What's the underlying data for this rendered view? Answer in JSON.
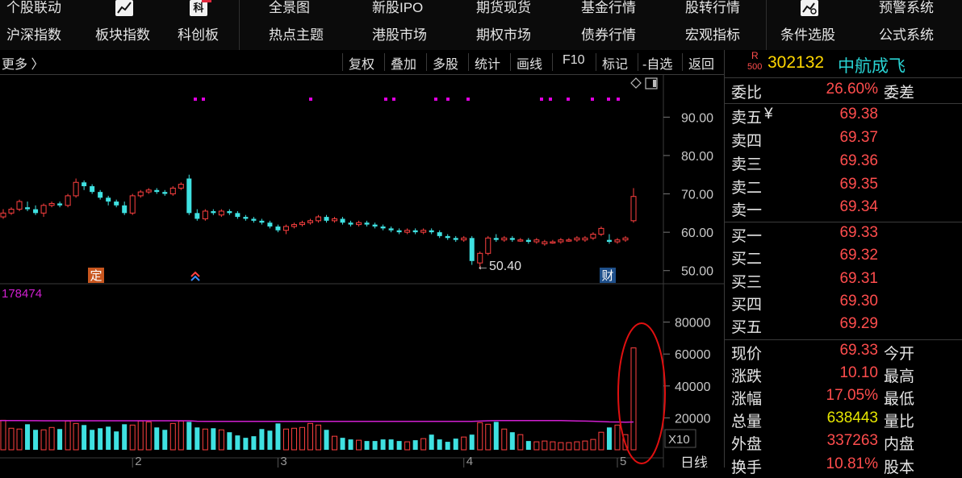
{
  "nav": {
    "row1": [
      "个股联动",
      "全景图",
      "新股IPO",
      "期货现货",
      "基金行情",
      "股转行情",
      "预警系统"
    ],
    "row2": [
      "沪深指数",
      "板块指数",
      "科创板",
      "热点主题",
      "港股市场",
      "期权市场",
      "债券行情",
      "宏观指标",
      "条件选股",
      "公式系统"
    ],
    "icon_ke": "科"
  },
  "toolbar": {
    "more": "更多 〉",
    "buttons": [
      "复权",
      "叠加",
      "多股",
      "统计",
      "画线",
      "F10",
      "标记",
      "-自选",
      "返回"
    ]
  },
  "stock": {
    "badge_r": "R",
    "badge_500": "500",
    "code": "302132",
    "name": "中航成飞"
  },
  "quote": {
    "weibi_label": "委比",
    "weibi_value": "26.60%",
    "weicha_label": "委差",
    "asks": [
      {
        "label": "卖五",
        "mark": "¥",
        "price": "69.38"
      },
      {
        "label": "卖四",
        "mark": "",
        "price": "69.37"
      },
      {
        "label": "卖三",
        "mark": "",
        "price": "69.36"
      },
      {
        "label": "卖二",
        "mark": "",
        "price": "69.35"
      },
      {
        "label": "卖一",
        "mark": "",
        "price": "69.34"
      }
    ],
    "bids": [
      {
        "label": "买一",
        "price": "69.33"
      },
      {
        "label": "买二",
        "price": "69.32"
      },
      {
        "label": "买三",
        "price": "69.31"
      },
      {
        "label": "买四",
        "price": "69.30"
      },
      {
        "label": "买五",
        "price": "69.29"
      }
    ],
    "stats": [
      {
        "label": "现价",
        "value": "69.33",
        "extra": "今开",
        "color": "#ff4d4d"
      },
      {
        "label": "涨跌",
        "value": "10.10",
        "extra": "最高",
        "color": "#ff4d4d"
      },
      {
        "label": "涨幅",
        "value": "17.05%",
        "extra": "最低",
        "color": "#ff4d4d"
      },
      {
        "label": "总量",
        "value": "638443",
        "extra": "量比",
        "color": "#e6e600"
      },
      {
        "label": "外盘",
        "value": "337263",
        "extra": "内盘",
        "color": "#ff4d4d"
      },
      {
        "label": "换手",
        "value": "10.81%",
        "extra": "股本",
        "color": "#ff4d4d"
      }
    ]
  },
  "chart_data": [
    {
      "type": "candlestick",
      "y_ticks": [
        "90.00",
        "80.00",
        "70.00",
        "60.00",
        "50.00"
      ],
      "ylim": [
        47,
        97
      ],
      "low_annotation": "←50.40",
      "marker_labels": [
        "定",
        "财"
      ],
      "candles": [
        [
          64.0,
          66.0,
          63.5,
          65.0
        ],
        [
          65.0,
          66.5,
          64.5,
          66.0
        ],
        [
          66.0,
          68.5,
          65.5,
          68.0
        ],
        [
          66.5,
          68.0,
          65.5,
          66.0
        ],
        [
          66.0,
          67.0,
          64.5,
          65.0
        ],
        [
          65.0,
          67.5,
          64.0,
          67.0
        ],
        [
          67.0,
          68.0,
          66.5,
          67.5
        ],
        [
          67.5,
          68.0,
          66.5,
          67.0
        ],
        [
          67.0,
          70.0,
          66.5,
          69.5
        ],
        [
          69.5,
          74.0,
          69.0,
          73.0
        ],
        [
          73.0,
          73.5,
          71.0,
          72.0
        ],
        [
          72.0,
          72.5,
          70.0,
          70.5
        ],
        [
          70.5,
          71.0,
          68.5,
          69.0
        ],
        [
          69.0,
          69.5,
          67.0,
          68.0
        ],
        [
          68.0,
          68.5,
          66.5,
          67.0
        ],
        [
          67.0,
          68.0,
          64.5,
          65.0
        ],
        [
          65.0,
          70.0,
          64.5,
          69.5
        ],
        [
          69.5,
          71.0,
          69.0,
          70.5
        ],
        [
          70.5,
          71.5,
          70.0,
          71.0
        ],
        [
          71.0,
          71.5,
          70.0,
          70.5
        ],
        [
          70.5,
          71.0,
          69.5,
          70.0
        ],
        [
          70.0,
          72.0,
          69.5,
          71.5
        ],
        [
          71.5,
          73.0,
          71.0,
          72.5
        ],
        [
          74.0,
          75.0,
          64.5,
          65.0
        ],
        [
          65.0,
          66.0,
          63.0,
          63.5
        ],
        [
          63.5,
          66.0,
          63.0,
          65.5
        ],
        [
          65.5,
          66.0,
          64.5,
          65.0
        ],
        [
          64.5,
          66.0,
          64.0,
          65.5
        ],
        [
          65.5,
          66.0,
          64.5,
          65.0
        ],
        [
          65.0,
          65.5,
          63.5,
          64.0
        ],
        [
          64.0,
          64.5,
          63.0,
          63.5
        ],
        [
          63.5,
          64.0,
          62.5,
          63.0
        ],
        [
          63.0,
          63.5,
          62.0,
          62.5
        ],
        [
          62.5,
          63.0,
          61.0,
          61.5
        ],
        [
          61.5,
          62.0,
          60.0,
          60.5
        ],
        [
          60.5,
          62.0,
          59.5,
          61.5
        ],
        [
          61.5,
          62.5,
          61.0,
          62.0
        ],
        [
          62.0,
          63.0,
          61.5,
          62.5
        ],
        [
          62.5,
          63.5,
          62.0,
          63.0
        ],
        [
          63.0,
          64.5,
          62.5,
          64.0
        ],
        [
          64.0,
          64.5,
          62.5,
          63.0
        ],
        [
          63.0,
          64.0,
          62.5,
          63.5
        ],
        [
          63.5,
          64.0,
          62.0,
          62.5
        ],
        [
          62.5,
          63.0,
          61.5,
          62.0
        ],
        [
          62.0,
          63.0,
          61.5,
          62.5
        ],
        [
          62.5,
          63.0,
          61.5,
          62.0
        ],
        [
          62.0,
          62.5,
          61.0,
          61.5
        ],
        [
          61.5,
          62.0,
          60.5,
          61.0
        ],
        [
          61.0,
          61.5,
          60.0,
          60.5
        ],
        [
          60.5,
          61.0,
          59.5,
          60.0
        ],
        [
          60.0,
          61.0,
          59.5,
          60.5
        ],
        [
          60.5,
          61.0,
          59.5,
          60.0
        ],
        [
          60.0,
          61.0,
          59.5,
          60.5
        ],
        [
          60.5,
          61.0,
          59.5,
          60.0
        ],
        [
          60.0,
          60.5,
          58.5,
          59.0
        ],
        [
          59.0,
          59.5,
          58.0,
          58.5
        ],
        [
          58.5,
          59.0,
          57.5,
          58.0
        ],
        [
          58.0,
          59.0,
          57.5,
          58.5
        ],
        [
          58.5,
          59.0,
          51.5,
          52.5
        ],
        [
          52.0,
          55.0,
          50.4,
          54.5
        ],
        [
          54.5,
          59.0,
          54.0,
          58.5
        ],
        [
          58.5,
          59.5,
          57.5,
          58.0
        ],
        [
          58.0,
          59.0,
          57.5,
          58.5
        ],
        [
          58.5,
          59.0,
          57.5,
          58.0
        ],
        [
          58.0,
          58.5,
          57.5,
          58.0
        ],
        [
          58.0,
          58.5,
          57.0,
          57.5
        ],
        [
          57.5,
          58.5,
          57.0,
          58.0
        ],
        [
          57.0,
          58.0,
          56.5,
          57.5
        ],
        [
          57.5,
          58.0,
          57.0,
          57.5
        ],
        [
          57.5,
          58.5,
          57.0,
          58.0
        ],
        [
          58.0,
          58.5,
          57.5,
          58.0
        ],
        [
          58.0,
          59.0,
          57.5,
          58.5
        ],
        [
          58.0,
          59.0,
          57.5,
          58.5
        ],
        [
          58.5,
          60.0,
          58.0,
          59.5
        ],
        [
          59.5,
          61.5,
          59.0,
          61.0
        ],
        [
          58.0,
          59.5,
          57.0,
          57.5
        ],
        [
          57.5,
          58.5,
          57.0,
          58.0
        ],
        [
          58.0,
          59.0,
          57.5,
          58.5
        ],
        [
          63.0,
          71.5,
          62.5,
          69.33
        ]
      ]
    },
    {
      "type": "bar",
      "legend_value": "178474",
      "y_ticks": [
        "80000",
        "60000",
        "40000",
        "20000"
      ],
      "ylim": [
        0,
        100000
      ],
      "multiplier_label": "X10",
      "x_ticks": [
        "2",
        "3",
        "4",
        "5"
      ],
      "period_label": "日线",
      "volumes": [
        18500,
        13500,
        13000,
        16000,
        12500,
        12500,
        14000,
        13000,
        18000,
        16500,
        15500,
        12500,
        13500,
        14500,
        11500,
        16000,
        15500,
        18000,
        17500,
        14000,
        12500,
        16500,
        18000,
        17500,
        14000,
        13000,
        13500,
        12500,
        11000,
        9000,
        7500,
        8500,
        13000,
        12000,
        16500,
        13000,
        13500,
        14000,
        16500,
        15500,
        12500,
        8500,
        7500,
        6500,
        6000,
        5500,
        5500,
        6500,
        6500,
        5500,
        5000,
        6000,
        7000,
        9500,
        6500,
        5000,
        7000,
        8000,
        9500,
        17000,
        16000,
        17500,
        13000,
        11000,
        9500,
        5500,
        5000,
        5500,
        5000,
        4500,
        4500,
        5000,
        5500,
        6500,
        11000,
        14000,
        15500,
        9500,
        63844
      ],
      "ma_line": [
        18300,
        18300,
        18300,
        18250,
        18250,
        18200,
        18200,
        18200,
        18200,
        18200,
        18200,
        18200,
        18200,
        18200,
        18200,
        18200,
        18200,
        18200,
        18200,
        18200,
        18200,
        18200,
        18200,
        18200,
        17900,
        17800,
        17800,
        17800,
        17800,
        17800,
        17800,
        17800,
        17800,
        17800,
        17800,
        17800,
        17800,
        17800,
        17800,
        17800,
        17800,
        17800,
        17800,
        17800,
        17800,
        17800,
        17800,
        17800,
        17800,
        17800,
        17800,
        17800,
        17800,
        17800,
        17800,
        17800,
        17800,
        17800,
        17800,
        18000,
        18200,
        18300,
        18300,
        18300,
        18300,
        18300,
        18300,
        18300,
        18300,
        18300,
        18200,
        18100,
        18000,
        17900,
        17700,
        17500,
        17400,
        17300,
        17400
      ]
    }
  ],
  "colors": {
    "up": "#ff4040",
    "down": "#3fe1e1",
    "ma": "#d11fd1",
    "grid": "#333333",
    "axis_text": "#c8c8c8",
    "annotation_circle": "#e01010"
  }
}
